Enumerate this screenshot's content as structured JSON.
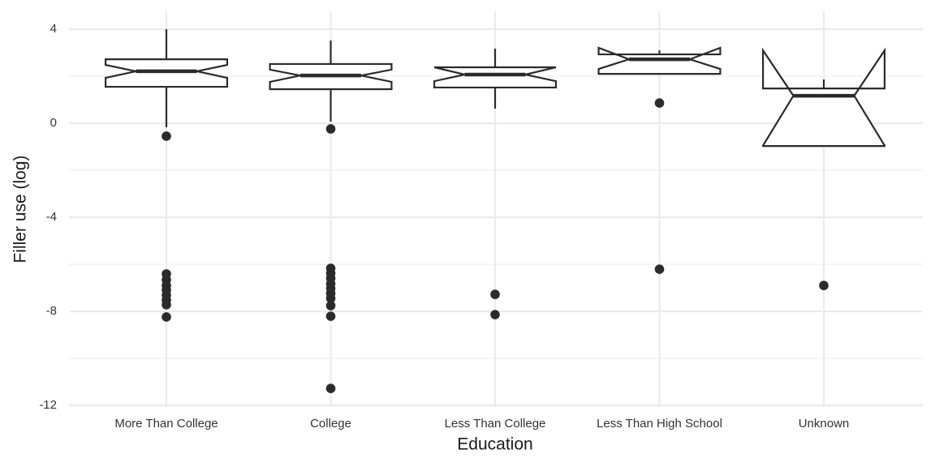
{
  "chart_data": {
    "type": "boxplot",
    "x_label": "Education",
    "y_label": "Filler use (log)",
    "categories": [
      "More Than College",
      "College",
      "Less Than College",
      "Less Than High School",
      "Unknown"
    ],
    "boxes": [
      {
        "whisker_low": -0.17,
        "q1": 1.55,
        "notch_low": 1.93,
        "median": 2.21,
        "notch_high": 2.48,
        "q3": 2.72,
        "whisker_high": 4.0,
        "outliers": [
          -0.55,
          -6.41,
          -6.66,
          -6.9,
          -7.1,
          -7.31,
          -7.52,
          -7.72,
          -8.24
        ]
      },
      {
        "whisker_low": 0.07,
        "q1": 1.45,
        "notch_low": 1.76,
        "median": 2.03,
        "notch_high": 2.28,
        "q3": 2.52,
        "whisker_high": 3.52,
        "outliers": [
          -0.24,
          -6.17,
          -6.38,
          -6.59,
          -6.83,
          -7.03,
          -7.24,
          -7.45,
          -7.76,
          -8.21,
          -11.28
        ]
      },
      {
        "whisker_low": 0.62,
        "q1": 1.52,
        "notch_low": 1.79,
        "median": 2.07,
        "notch_high": 2.38,
        "q3": 2.38,
        "whisker_high": 3.17,
        "outliers": [
          -7.28,
          -8.14
        ]
      },
      {
        "whisker_low": 2.1,
        "q1": 2.1,
        "notch_low": 2.31,
        "median": 2.72,
        "notch_high": 3.21,
        "q3": 2.93,
        "whisker_high": 3.1,
        "outliers": [
          0.86,
          -6.21
        ]
      },
      {
        "whisker_low": -0.97,
        "q1": -0.97,
        "notch_low": -0.95,
        "median": 1.17,
        "notch_high": 3.1,
        "q3": 1.48,
        "whisker_high": 1.86,
        "outliers": [
          -6.9
        ]
      }
    ],
    "color": "#2b2b2b",
    "grid_color": "#ebebeb",
    "ylim": [
      -12.07,
      4.77
    ],
    "yticks": [
      4,
      0,
      -4,
      -8,
      -12
    ],
    "minor_yticks": [
      2,
      -2,
      -6,
      -10
    ],
    "grid": true
  }
}
